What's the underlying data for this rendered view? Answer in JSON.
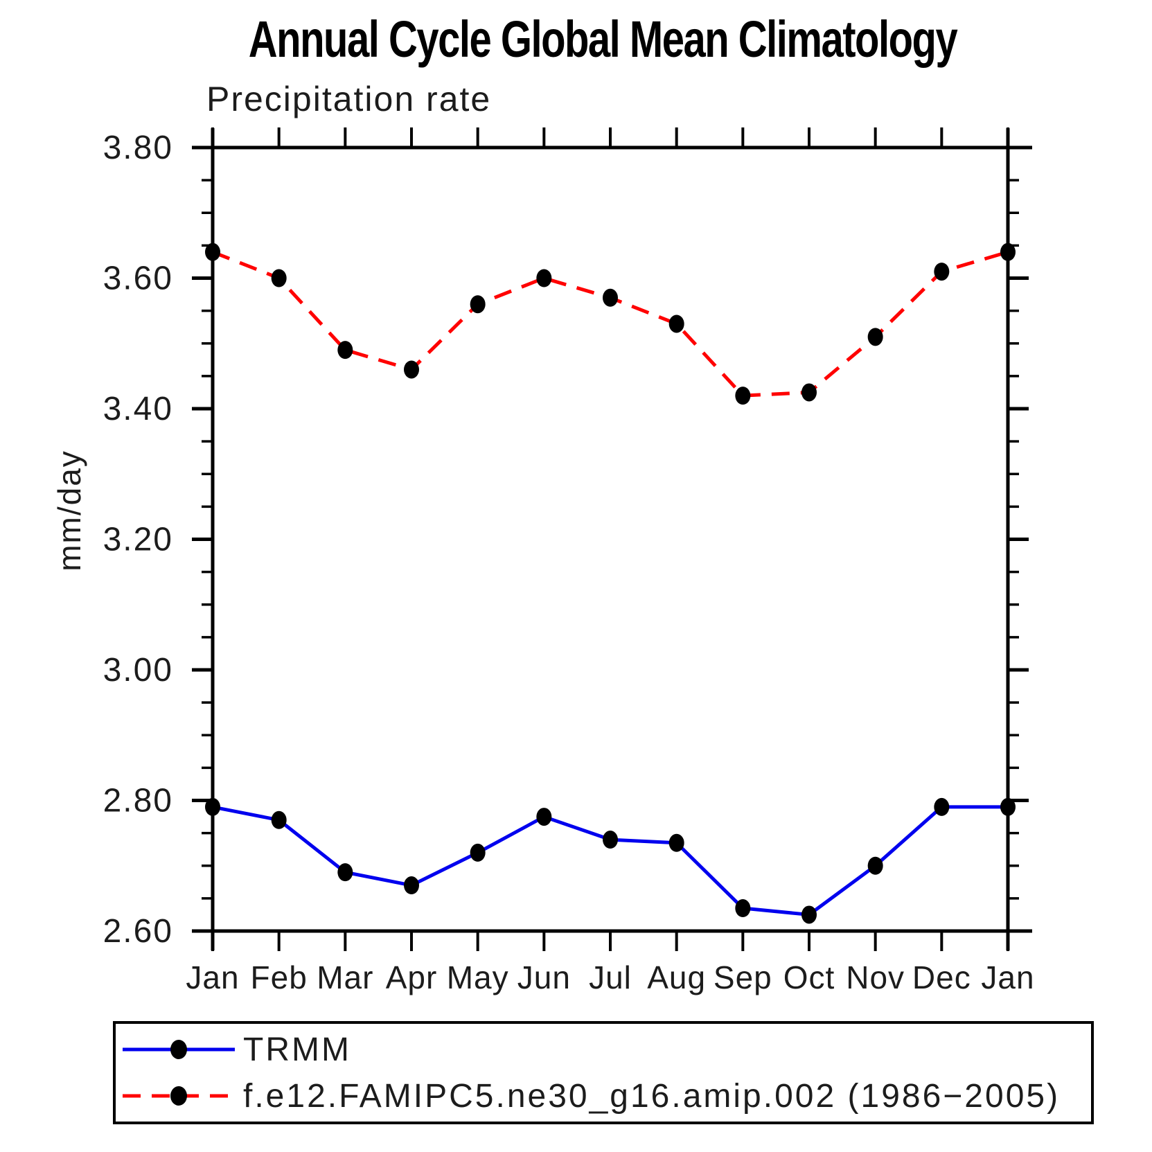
{
  "title": "Annual Cycle Global Mean Climatology",
  "subtitle": "Precipitation rate",
  "ylabel": "mm/day",
  "colors": {
    "trmm_line": "#0000ee",
    "model_line": "#ff0000",
    "marker": "#000000",
    "axis": "#000000"
  },
  "legend": {
    "entries": [
      {
        "label": "TRMM",
        "color": "#0000ee",
        "dash": "solid",
        "marker": "black-dot"
      },
      {
        "label": "f.e12.FAMIPC5.ne30_g16.amip.002 (1986−2005)",
        "color": "#ff0000",
        "dash": "dashed",
        "marker": "black-dot"
      }
    ]
  },
  "chart_data": {
    "type": "line",
    "title": "Precipitation rate",
    "xlabel": "",
    "ylabel": "mm/day",
    "categories": [
      "Jan",
      "Feb",
      "Mar",
      "Apr",
      "May",
      "Jun",
      "Jul",
      "Aug",
      "Sep",
      "Oct",
      "Nov",
      "Dec",
      "Jan"
    ],
    "series": [
      {
        "name": "TRMM",
        "color": "#0000ee",
        "style": "solid",
        "marker": "black-dot",
        "values": [
          2.79,
          2.77,
          2.69,
          2.67,
          2.72,
          2.775,
          2.74,
          2.735,
          2.635,
          2.625,
          2.7,
          2.79,
          2.79
        ]
      },
      {
        "name": "f.e12.FAMIPC5.ne30_g16.amip.002 (1986−2005)",
        "color": "#ff0000",
        "style": "dashed",
        "marker": "black-dot",
        "values": [
          3.64,
          3.6,
          3.49,
          3.46,
          3.56,
          3.6,
          3.57,
          3.53,
          3.42,
          3.425,
          3.51,
          3.61,
          3.64
        ]
      }
    ],
    "ylim": [
      2.6,
      3.8
    ],
    "ytick_step": 0.2,
    "yminor_step": 0.05,
    "ytick_labels": [
      "2.60",
      "2.80",
      "3.00",
      "3.20",
      "3.40",
      "3.60",
      "3.80"
    ],
    "grid": false,
    "legend_position": "bottom"
  }
}
